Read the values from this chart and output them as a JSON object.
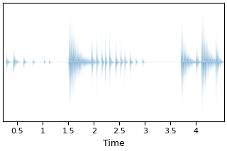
{
  "title": "",
  "xlabel": "Time",
  "ylabel": "",
  "color": "#1f77b4",
  "xlim": [
    0.22,
    4.55
  ],
  "ylim": [
    -1.05,
    1.05
  ],
  "xticks": [
    0.5,
    1.0,
    1.5,
    2.0,
    2.5,
    3.0,
    3.5,
    4.0
  ],
  "xtick_labels": [
    "0.5",
    "1",
    "1.5",
    "2",
    "2.5",
    "3",
    "3.5",
    "4"
  ],
  "sample_rate": 5000,
  "duration": 4.6,
  "seed": 7,
  "background_color": "#ffffff",
  "segments": [
    {
      "t": 0.28,
      "amp": 0.28,
      "dur": 0.12,
      "decay": 4.0,
      "freq": 180
    },
    {
      "t": 0.42,
      "amp": 0.38,
      "dur": 0.18,
      "decay": 5.0,
      "freq": 200
    },
    {
      "t": 0.62,
      "amp": 0.22,
      "dur": 0.1,
      "decay": 4.5,
      "freq": 150
    },
    {
      "t": 0.8,
      "amp": 0.14,
      "dur": 0.08,
      "decay": 4.0,
      "freq": 160
    },
    {
      "t": 1.02,
      "amp": 0.1,
      "dur": 0.06,
      "decay": 3.5,
      "freq": 140
    },
    {
      "t": 1.12,
      "amp": 0.1,
      "dur": 0.06,
      "decay": 3.5,
      "freq": 140
    },
    {
      "t": 1.5,
      "amp": 0.98,
      "dur": 0.55,
      "decay": 3.5,
      "freq": 220
    },
    {
      "t": 1.95,
      "amp": 0.75,
      "dur": 0.12,
      "decay": 5.0,
      "freq": 260
    },
    {
      "t": 2.05,
      "amp": 0.88,
      "dur": 0.1,
      "decay": 6.0,
      "freq": 300
    },
    {
      "t": 2.15,
      "amp": 0.92,
      "dur": 0.09,
      "decay": 6.0,
      "freq": 280
    },
    {
      "t": 2.22,
      "amp": 0.85,
      "dur": 0.08,
      "decay": 6.0,
      "freq": 260
    },
    {
      "t": 2.3,
      "amp": 0.65,
      "dur": 0.12,
      "decay": 5.0,
      "freq": 240
    },
    {
      "t": 2.42,
      "amp": 0.68,
      "dur": 0.1,
      "decay": 5.0,
      "freq": 240
    },
    {
      "t": 2.52,
      "amp": 0.58,
      "dur": 0.08,
      "decay": 4.5,
      "freq": 220
    },
    {
      "t": 2.6,
      "amp": 0.48,
      "dur": 0.08,
      "decay": 4.5,
      "freq": 220
    },
    {
      "t": 2.7,
      "amp": 0.42,
      "dur": 0.08,
      "decay": 4.0,
      "freq": 200
    },
    {
      "t": 2.82,
      "amp": 0.22,
      "dur": 0.06,
      "decay": 4.0,
      "freq": 180
    },
    {
      "t": 2.95,
      "amp": 0.18,
      "dur": 0.06,
      "decay": 3.5,
      "freq": 170
    },
    {
      "t": 3.7,
      "amp": 0.88,
      "dur": 0.38,
      "decay": 4.0,
      "freq": 200
    },
    {
      "t": 4.0,
      "amp": 0.55,
      "dur": 0.12,
      "decay": 4.5,
      "freq": 220
    },
    {
      "t": 4.1,
      "amp": 0.98,
      "dur": 0.42,
      "decay": 3.5,
      "freq": 240
    },
    {
      "t": 4.38,
      "amp": 0.78,
      "dur": 0.18,
      "decay": 4.0,
      "freq": 200
    }
  ]
}
